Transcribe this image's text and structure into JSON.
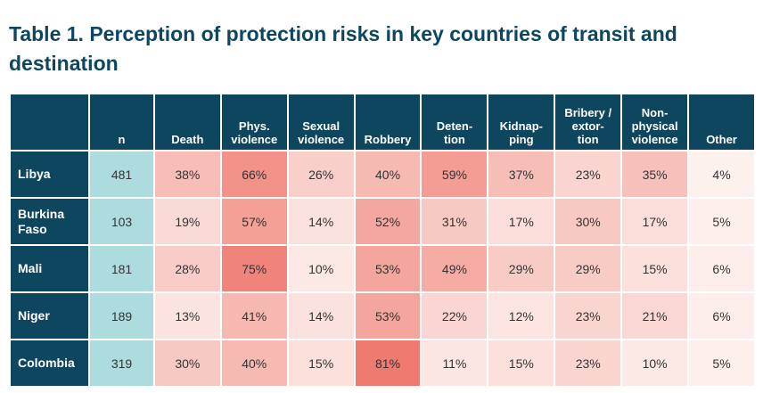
{
  "title": "Table 1. Perception of protection risks in key countries of transit and destination",
  "columns": [
    {
      "key": "country",
      "lines": [
        ""
      ]
    },
    {
      "key": "n",
      "lines": [
        "n"
      ]
    },
    {
      "key": "death",
      "lines": [
        "Death"
      ]
    },
    {
      "key": "phys",
      "lines": [
        "Phys.",
        "violence"
      ]
    },
    {
      "key": "sexual",
      "lines": [
        "Sexual",
        "violence"
      ]
    },
    {
      "key": "robbery",
      "lines": [
        "Robbery"
      ]
    },
    {
      "key": "detention",
      "lines": [
        "Deten-",
        "tion"
      ]
    },
    {
      "key": "kidnap",
      "lines": [
        "Kidnap-",
        "ping"
      ]
    },
    {
      "key": "bribery",
      "lines": [
        "Bribery /",
        "extor-",
        "tion"
      ]
    },
    {
      "key": "nonphys",
      "lines": [
        "Non-",
        "physical",
        "violence"
      ]
    },
    {
      "key": "other",
      "lines": [
        "Other"
      ]
    }
  ],
  "rows": [
    {
      "country_lines": [
        "Libya"
      ],
      "n": "481",
      "values": [
        "38%",
        "66%",
        "26%",
        "40%",
        "59%",
        "37%",
        "23%",
        "35%",
        "4%"
      ]
    },
    {
      "country_lines": [
        "Burkina",
        "Faso"
      ],
      "n": "103",
      "values": [
        "19%",
        "57%",
        "14%",
        "52%",
        "31%",
        "17%",
        "30%",
        "17%",
        "5%"
      ]
    },
    {
      "country_lines": [
        "Mali"
      ],
      "n": "181",
      "values": [
        "28%",
        "75%",
        "10%",
        "53%",
        "49%",
        "29%",
        "29%",
        "15%",
        "6%"
      ]
    },
    {
      "country_lines": [
        "Niger"
      ],
      "n": "189",
      "values": [
        "13%",
        "41%",
        "14%",
        "53%",
        "22%",
        "12%",
        "23%",
        "21%",
        "6%"
      ]
    },
    {
      "country_lines": [
        "Colombia"
      ],
      "n": "319",
      "values": [
        "30%",
        "40%",
        "15%",
        "81%",
        "11%",
        "15%",
        "23%",
        "10%",
        "5%"
      ]
    }
  ],
  "colors": {
    "header_bg": "#0e4660",
    "n_bg": "#addcdf",
    "heat_low": "#fdf1ee",
    "heat_high": "#ef7b70"
  }
}
